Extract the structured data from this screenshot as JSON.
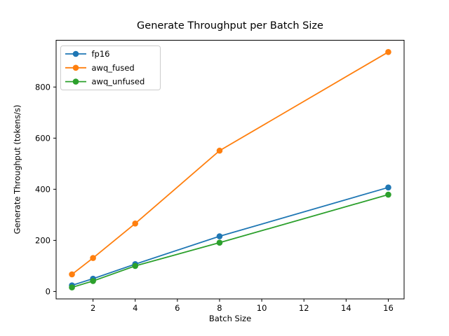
{
  "chart_data": {
    "type": "line",
    "title": "Generate Throughput per Batch Size",
    "xlabel": "Batch Size",
    "ylabel": "Generate Throughput (tokens/s)",
    "x": [
      1,
      2,
      4,
      8,
      16
    ],
    "series": [
      {
        "name": "fp16",
        "color": "#1f77b4",
        "values": [
          24,
          50,
          107,
          216,
          407
        ]
      },
      {
        "name": "awq_fused",
        "color": "#ff7f0e",
        "values": [
          67,
          131,
          266,
          551,
          937
        ]
      },
      {
        "name": "awq_unfused",
        "color": "#2ca02c",
        "values": [
          16,
          41,
          100,
          191,
          379
        ]
      }
    ],
    "xticks": [
      2,
      4,
      6,
      8,
      10,
      12,
      14,
      16
    ],
    "yticks": [
      0,
      200,
      400,
      600,
      800
    ],
    "xlim": [
      0.25,
      16.75
    ],
    "ylim": [
      -29,
      983
    ],
    "legend_position": "upper left",
    "grid": false,
    "marker": "o",
    "line_style": "solid",
    "axes_color": "#000000",
    "legend_edge_color": "#cccccc",
    "background_color": "#ffffff"
  }
}
